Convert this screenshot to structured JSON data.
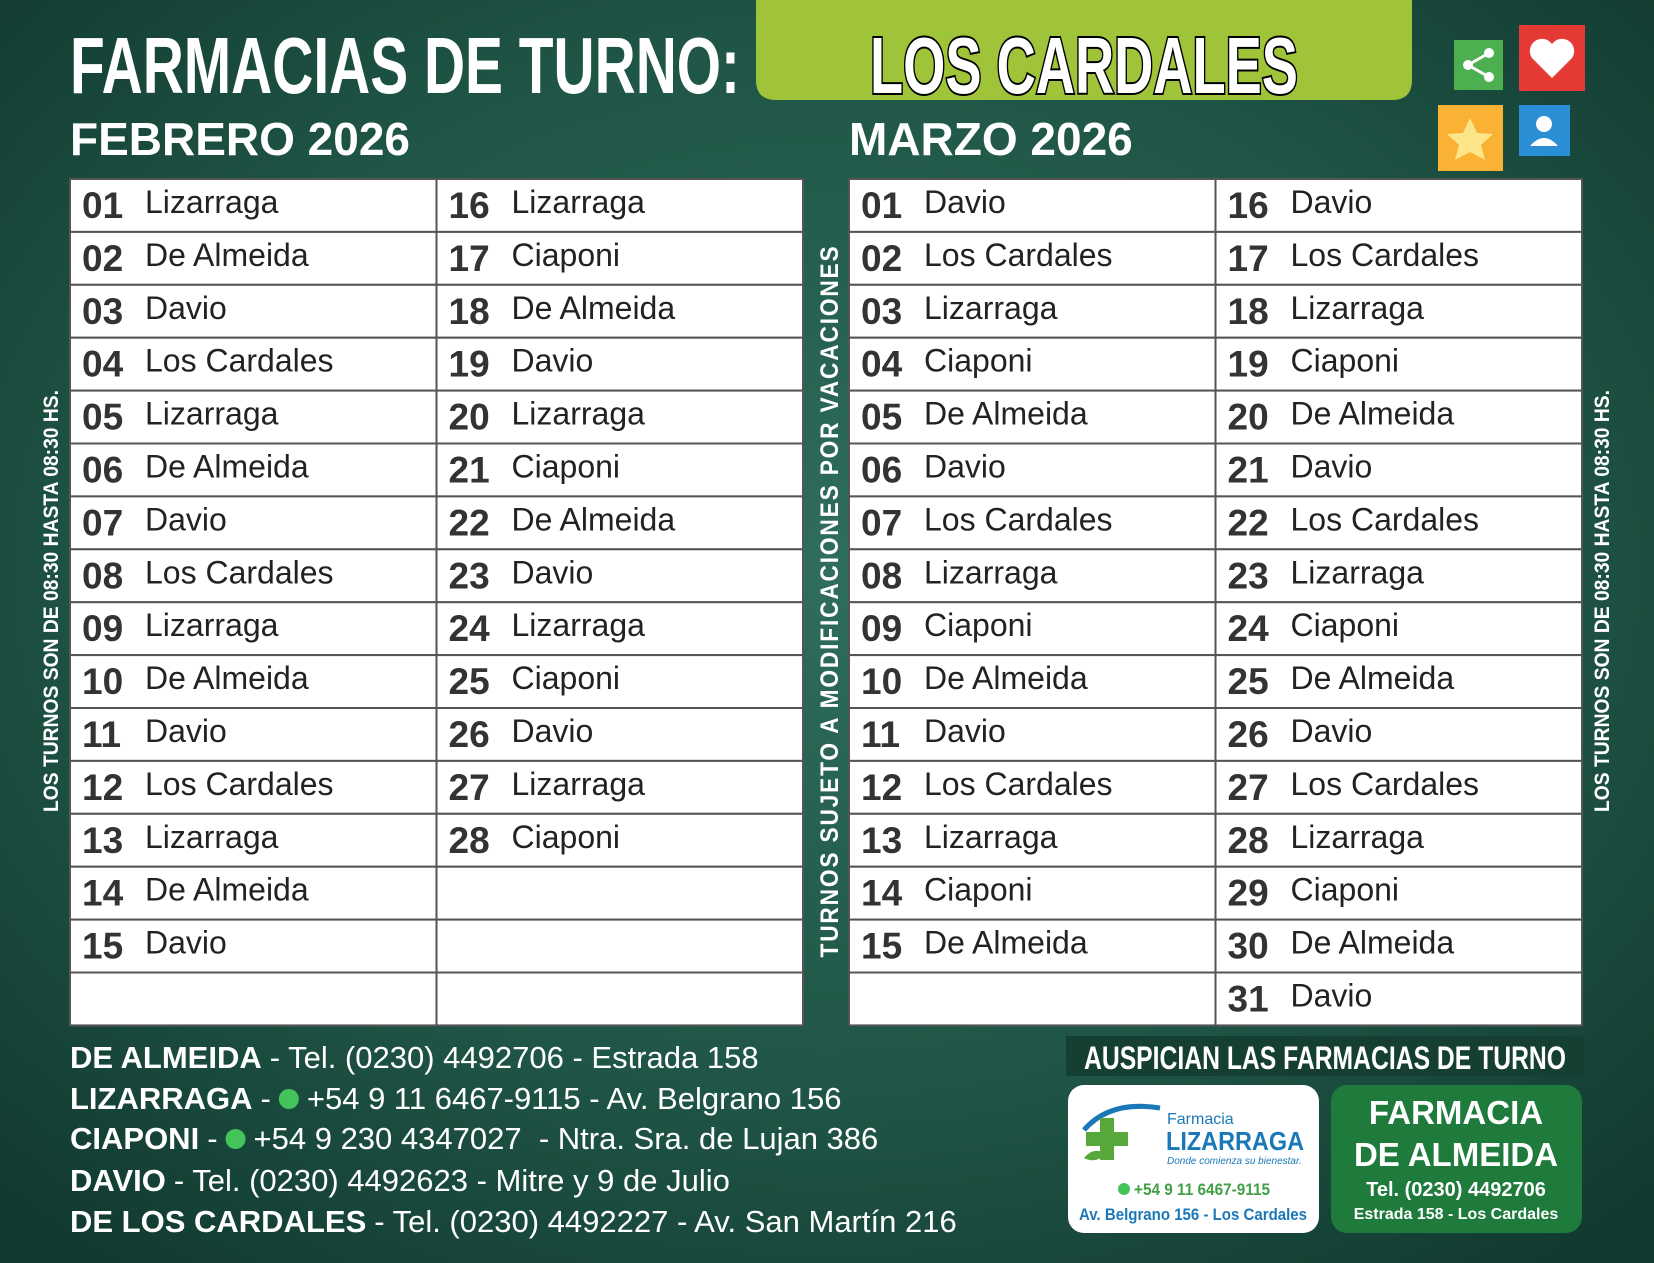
{
  "header": {
    "title": "FARMACIAS DE TURNO:",
    "location": "LOS CARDALES"
  },
  "months": [
    {
      "title": "FEBRERO 2026",
      "days": [
        {
          "day": "01",
          "pharmacy": "Lizarraga"
        },
        {
          "day": "02",
          "pharmacy": "De Almeida"
        },
        {
          "day": "03",
          "pharmacy": "Davio"
        },
        {
          "day": "04",
          "pharmacy": "Los Cardales"
        },
        {
          "day": "05",
          "pharmacy": "Lizarraga"
        },
        {
          "day": "06",
          "pharmacy": "De Almeida"
        },
        {
          "day": "07",
          "pharmacy": "Davio"
        },
        {
          "day": "08",
          "pharmacy": "Los Cardales"
        },
        {
          "day": "09",
          "pharmacy": "Lizarraga"
        },
        {
          "day": "10",
          "pharmacy": "De Almeida"
        },
        {
          "day": "11",
          "pharmacy": "Davio"
        },
        {
          "day": "12",
          "pharmacy": "Los Cardales"
        },
        {
          "day": "13",
          "pharmacy": "Lizarraga"
        },
        {
          "day": "14",
          "pharmacy": "De Almeida"
        },
        {
          "day": "15",
          "pharmacy": "Davio"
        },
        {
          "day": "16",
          "pharmacy": "Lizarraga"
        },
        {
          "day": "17",
          "pharmacy": "Ciaponi"
        },
        {
          "day": "18",
          "pharmacy": "De Almeida"
        },
        {
          "day": "19",
          "pharmacy": "Davio"
        },
        {
          "day": "20",
          "pharmacy": "Lizarraga"
        },
        {
          "day": "21",
          "pharmacy": "Ciaponi"
        },
        {
          "day": "22",
          "pharmacy": "De Almeida"
        },
        {
          "day": "23",
          "pharmacy": "Davio"
        },
        {
          "day": "24",
          "pharmacy": "Lizarraga"
        },
        {
          "day": "25",
          "pharmacy": "Ciaponi"
        },
        {
          "day": "26",
          "pharmacy": "Davio"
        },
        {
          "day": "27",
          "pharmacy": "Lizarraga"
        },
        {
          "day": "28",
          "pharmacy": "Ciaponi"
        }
      ]
    },
    {
      "title": "MARZO 2026",
      "days": [
        {
          "day": "01",
          "pharmacy": "Davio"
        },
        {
          "day": "02",
          "pharmacy": "Los Cardales"
        },
        {
          "day": "03",
          "pharmacy": "Lizarraga"
        },
        {
          "day": "04",
          "pharmacy": "Ciaponi"
        },
        {
          "day": "05",
          "pharmacy": "De Almeida"
        },
        {
          "day": "06",
          "pharmacy": "Davio"
        },
        {
          "day": "07",
          "pharmacy": "Los Cardales"
        },
        {
          "day": "08",
          "pharmacy": "Lizarraga"
        },
        {
          "day": "09",
          "pharmacy": "Ciaponi"
        },
        {
          "day": "10",
          "pharmacy": "De Almeida"
        },
        {
          "day": "11",
          "pharmacy": "Davio"
        },
        {
          "day": "12",
          "pharmacy": "Los Cardales"
        },
        {
          "day": "13",
          "pharmacy": "Lizarraga"
        },
        {
          "day": "14",
          "pharmacy": "Ciaponi"
        },
        {
          "day": "15",
          "pharmacy": "De Almeida"
        },
        {
          "day": "16",
          "pharmacy": "Davio"
        },
        {
          "day": "17",
          "pharmacy": "Los Cardales"
        },
        {
          "day": "18",
          "pharmacy": "Lizarraga"
        },
        {
          "day": "19",
          "pharmacy": "Ciaponi"
        },
        {
          "day": "20",
          "pharmacy": "De Almeida"
        },
        {
          "day": "21",
          "pharmacy": "Davio"
        },
        {
          "day": "22",
          "pharmacy": "Los Cardales"
        },
        {
          "day": "23",
          "pharmacy": "Lizarraga"
        },
        {
          "day": "24",
          "pharmacy": "Ciaponi"
        },
        {
          "day": "25",
          "pharmacy": "De Almeida"
        },
        {
          "day": "26",
          "pharmacy": "Davio"
        },
        {
          "day": "27",
          "pharmacy": "Los Cardales"
        },
        {
          "day": "28",
          "pharmacy": "Lizarraga"
        },
        {
          "day": "29",
          "pharmacy": "Ciaponi"
        },
        {
          "day": "30",
          "pharmacy": "De Almeida"
        },
        {
          "day": "31",
          "pharmacy": "Davio"
        }
      ]
    }
  ],
  "side_notes": {
    "left": "LOS TURNOS SON DE 08:30 HASTA 08:30 HS.",
    "center": "TURNOS SUJETO A MODIFICACIONES POR VACACIONES",
    "right": "LOS TURNOS SON DE 08:30 HASTA 08:30 HS."
  },
  "contacts": [
    {
      "name": "DE ALMEIDA",
      "separator": "-",
      "whatsapp": false,
      "detail": "Tel. (0230) 4492706 - Estrada 158"
    },
    {
      "name": "LIZARRAGA",
      "separator": "-",
      "whatsapp": true,
      "detail": "+54 9 11 6467-9115 - Av. Belgrano 156"
    },
    {
      "name": "CIAPONI",
      "separator": "-",
      "whatsapp": true,
      "detail": "+54 9 230 4347027  - Ntra. Sra. de Lujan 386"
    },
    {
      "name": "DAVIO",
      "separator": "-",
      "whatsapp": false,
      "detail": "Tel. (0230) 4492623 - Mitre y 9 de Julio"
    },
    {
      "name": "DE LOS CARDALES",
      "separator": "-",
      "whatsapp": false,
      "detail": "Tel. (0230) 4492227 - Av. San Martín 216"
    }
  ],
  "sponsors": {
    "heading": "AUSPICIAN LAS FARMACIAS DE TURNO",
    "lizarraga": {
      "brand": "Farmacia",
      "name": "LIZARRAGA",
      "slogan": "Donde comienza su bienestar.",
      "phone": "+54 9 11 6467-9115",
      "address": "Av. Belgrano 156 - Los Cardales"
    },
    "almeida": {
      "name_line1": "FARMACIA",
      "name_line2": "DE ALMEIDA",
      "phone": "Tel. (0230) 4492706",
      "address": "Estrada 158 - Los Cardales"
    }
  }
}
